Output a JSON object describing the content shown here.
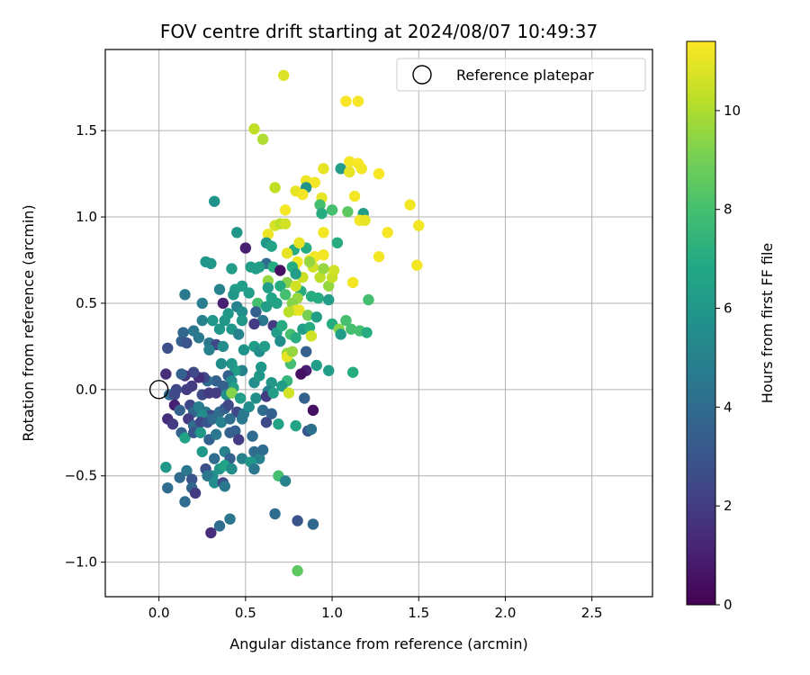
{
  "chart_data": {
    "type": "scatter",
    "title": "FOV centre drift starting at 2024/08/07 10:49:37",
    "xlabel": "Angular distance from reference (arcmin)",
    "ylabel": "Rotation from reference (arcmin)",
    "xlim": [
      -0.31,
      2.85
    ],
    "ylim": [
      -1.2,
      1.97
    ],
    "xticks": [
      0.0,
      0.5,
      1.0,
      1.5,
      2.0,
      2.5
    ],
    "yticks": [
      -1.0,
      -0.5,
      0.0,
      0.5,
      1.0,
      1.5
    ],
    "xtick_labels": [
      "0.0",
      "0.5",
      "1.0",
      "1.5",
      "2.0",
      "2.5"
    ],
    "ytick_labels": [
      "−1.0",
      "−0.5",
      "0.0",
      "0.5",
      "1.0",
      "1.5"
    ],
    "grid": true,
    "legend": {
      "placement": "top-right",
      "entries": [
        "Reference platepar"
      ]
    },
    "reference_point": {
      "x": 0.0,
      "y": 0.0
    },
    "colorbar": {
      "label": "Hours from first FF file",
      "range": [
        0,
        11.4
      ],
      "ticks": [
        0,
        2,
        4,
        6,
        8,
        10
      ],
      "tick_labels": [
        "0",
        "2",
        "4",
        "6",
        "8",
        "10"
      ],
      "colormap": "viridis"
    },
    "points": [
      [
        0.72,
        1.82,
        10.8
      ],
      [
        1.08,
        1.67,
        11.3
      ],
      [
        1.15,
        1.67,
        11.3
      ],
      [
        0.55,
        1.51,
        10.3
      ],
      [
        0.6,
        1.45,
        10.0
      ],
      [
        1.1,
        1.32,
        11.2
      ],
      [
        1.15,
        1.31,
        11.3
      ],
      [
        1.17,
        1.28,
        11.2
      ],
      [
        1.05,
        1.28,
        6.3
      ],
      [
        1.27,
        1.25,
        11.3
      ],
      [
        0.95,
        1.28,
        11.0
      ],
      [
        0.85,
        1.21,
        11.1
      ],
      [
        0.9,
        1.2,
        11.2
      ],
      [
        1.1,
        1.26,
        11.0
      ],
      [
        0.79,
        1.15,
        11.0
      ],
      [
        0.85,
        1.17,
        5.8
      ],
      [
        0.83,
        1.13,
        11.2
      ],
      [
        0.67,
        1.17,
        10.3
      ],
      [
        0.94,
        1.11,
        11.0
      ],
      [
        1.13,
        1.12,
        11.2
      ],
      [
        0.73,
        1.04,
        11.2
      ],
      [
        0.93,
        1.07,
        8.0
      ],
      [
        0.32,
        1.09,
        5.8
      ],
      [
        1.0,
        1.04,
        8.0
      ],
      [
        1.09,
        1.03,
        8.5
      ],
      [
        1.18,
        1.02,
        6.3
      ],
      [
        1.16,
        0.98,
        11.2
      ],
      [
        1.19,
        0.98,
        11.0
      ],
      [
        0.94,
        1.02,
        7.0
      ],
      [
        1.45,
        1.07,
        11.2
      ],
      [
        1.5,
        0.95,
        11.2
      ],
      [
        1.32,
        0.91,
        11.3
      ],
      [
        0.67,
        0.95,
        10.7
      ],
      [
        0.7,
        0.96,
        10.3
      ],
      [
        0.73,
        0.96,
        10.6
      ],
      [
        0.63,
        0.9,
        11.1
      ],
      [
        0.95,
        0.91,
        11.2
      ],
      [
        0.45,
        0.91,
        6.0
      ],
      [
        0.62,
        0.85,
        6.0
      ],
      [
        0.65,
        0.83,
        6.6
      ],
      [
        0.78,
        0.81,
        7.0
      ],
      [
        0.85,
        0.82,
        7.0
      ],
      [
        1.03,
        0.85,
        7.0
      ],
      [
        0.81,
        0.85,
        11.0
      ],
      [
        0.74,
        0.79,
        11.0
      ],
      [
        0.87,
        0.75,
        11.2
      ],
      [
        0.8,
        0.74,
        11.2
      ],
      [
        0.9,
        0.77,
        11.2
      ],
      [
        0.95,
        0.78,
        11.2
      ],
      [
        0.78,
        0.7,
        11.0
      ],
      [
        0.89,
        0.71,
        10.6
      ],
      [
        0.83,
        0.65,
        10.5
      ],
      [
        0.93,
        0.65,
        10.3
      ],
      [
        0.98,
        0.6,
        9.6
      ],
      [
        1.0,
        0.65,
        10.4
      ],
      [
        1.01,
        0.69,
        10.6
      ],
      [
        1.12,
        0.62,
        11.2
      ],
      [
        1.27,
        0.77,
        11.2
      ],
      [
        1.49,
        0.72,
        11.2
      ],
      [
        0.27,
        0.74,
        6.0
      ],
      [
        0.3,
        0.73,
        6.0
      ],
      [
        0.5,
        0.82,
        1.0
      ],
      [
        0.62,
        0.73,
        4.0
      ],
      [
        0.58,
        0.71,
        6.3
      ],
      [
        0.53,
        0.71,
        6.3
      ],
      [
        0.42,
        0.7,
        6.3
      ],
      [
        0.66,
        0.71,
        7.0
      ],
      [
        0.77,
        0.71,
        7.0
      ],
      [
        0.56,
        0.7,
        6.3
      ],
      [
        0.7,
        0.69,
        0.5
      ],
      [
        0.79,
        0.67,
        6.3
      ],
      [
        0.87,
        0.74,
        9.6
      ],
      [
        0.95,
        0.7,
        9.6
      ],
      [
        0.74,
        0.62,
        9.3
      ],
      [
        0.7,
        0.6,
        7.0
      ],
      [
        0.63,
        0.63,
        9.6
      ],
      [
        0.48,
        0.6,
        6.3
      ],
      [
        0.44,
        0.58,
        6.3
      ],
      [
        0.35,
        0.58,
        5.0
      ],
      [
        0.43,
        0.55,
        6.0
      ],
      [
        0.52,
        0.56,
        6.3
      ],
      [
        0.63,
        0.59,
        6.3
      ],
      [
        0.82,
        0.57,
        7.0
      ],
      [
        0.92,
        0.53,
        7.0
      ],
      [
        0.88,
        0.54,
        7.0
      ],
      [
        0.98,
        0.52,
        6.3
      ],
      [
        0.15,
        0.55,
        4.6
      ],
      [
        0.25,
        0.5,
        4.8
      ],
      [
        0.37,
        0.5,
        1.0
      ],
      [
        0.57,
        0.5,
        8.0
      ],
      [
        0.65,
        0.53,
        6.6
      ],
      [
        0.73,
        0.55,
        8.0
      ],
      [
        0.79,
        0.6,
        10.6
      ],
      [
        0.8,
        0.53,
        9.6
      ],
      [
        0.77,
        0.5,
        9.3
      ],
      [
        0.79,
        0.46,
        10.7
      ],
      [
        0.81,
        0.46,
        11.0
      ],
      [
        0.75,
        0.45,
        10.2
      ],
      [
        0.86,
        0.43,
        9.0
      ],
      [
        0.91,
        0.42,
        6.3
      ],
      [
        1.21,
        0.52,
        8.0
      ],
      [
        0.68,
        0.5,
        6.6
      ],
      [
        0.62,
        0.48,
        6.3
      ],
      [
        0.45,
        0.48,
        5.0
      ],
      [
        0.48,
        0.45,
        5.5
      ],
      [
        0.56,
        0.45,
        3.5
      ],
      [
        0.6,
        0.4,
        4.5
      ],
      [
        0.55,
        0.38,
        2.0
      ],
      [
        0.48,
        0.4,
        6.0
      ],
      [
        0.4,
        0.44,
        6.0
      ],
      [
        0.38,
        0.4,
        6.0
      ],
      [
        0.31,
        0.4,
        6.0
      ],
      [
        0.25,
        0.4,
        5.0
      ],
      [
        0.35,
        0.35,
        6.0
      ],
      [
        0.42,
        0.35,
        6.0
      ],
      [
        0.46,
        0.32,
        5.0
      ],
      [
        0.2,
        0.34,
        4.5
      ],
      [
        0.14,
        0.33,
        3.8
      ],
      [
        0.23,
        0.3,
        4.5
      ],
      [
        0.13,
        0.28,
        3.5
      ],
      [
        0.16,
        0.27,
        3.0
      ],
      [
        0.05,
        0.24,
        2.8
      ],
      [
        0.29,
        0.27,
        4.5
      ],
      [
        0.33,
        0.26,
        2.5
      ],
      [
        0.29,
        0.23,
        5.0
      ],
      [
        0.37,
        0.25,
        5.5
      ],
      [
        0.49,
        0.23,
        5.8
      ],
      [
        0.55,
        0.25,
        6.3
      ],
      [
        0.58,
        0.22,
        5.5
      ],
      [
        0.61,
        0.25,
        6.3
      ],
      [
        0.66,
        0.37,
        2.0
      ],
      [
        0.68,
        0.33,
        6.3
      ],
      [
        0.71,
        0.37,
        7.0
      ],
      [
        0.76,
        0.32,
        8.0
      ],
      [
        0.79,
        0.3,
        7.0
      ],
      [
        0.83,
        0.35,
        6.3
      ],
      [
        0.87,
        0.36,
        7.0
      ],
      [
        0.88,
        0.31,
        10.6
      ],
      [
        1.0,
        0.38,
        7.0
      ],
      [
        1.04,
        0.35,
        9.3
      ],
      [
        1.08,
        0.4,
        8.0
      ],
      [
        1.05,
        0.32,
        6.3
      ],
      [
        1.11,
        0.35,
        8.0
      ],
      [
        1.16,
        0.34,
        8.0
      ],
      [
        1.2,
        0.33,
        7.0
      ],
      [
        0.7,
        0.28,
        5.5
      ],
      [
        0.74,
        0.21,
        9.6
      ],
      [
        0.76,
        0.15,
        8.0
      ],
      [
        0.74,
        0.19,
        11.0
      ],
      [
        0.77,
        0.22,
        9.6
      ],
      [
        0.85,
        0.22,
        3.5
      ],
      [
        0.91,
        0.14,
        6.3
      ],
      [
        0.98,
        0.11,
        6.3
      ],
      [
        1.12,
        0.1,
        7.0
      ],
      [
        0.85,
        0.11,
        1.0
      ],
      [
        0.82,
        0.09,
        0.5
      ],
      [
        0.74,
        0.05,
        7.5
      ],
      [
        0.71,
        0.02,
        6.3
      ],
      [
        0.65,
        0.04,
        6.0
      ],
      [
        0.63,
        -0.01,
        5.0
      ],
      [
        0.55,
        0.04,
        5.5
      ],
      [
        0.58,
        0.08,
        6.0
      ],
      [
        0.59,
        0.13,
        6.0
      ],
      [
        0.48,
        0.11,
        5.0
      ],
      [
        0.44,
        0.11,
        6.3
      ],
      [
        0.42,
        0.15,
        6.0
      ],
      [
        0.36,
        0.15,
        5.5
      ],
      [
        0.4,
        0.08,
        3.5
      ],
      [
        0.42,
        0.05,
        5.5
      ],
      [
        0.43,
        0.01,
        6.3
      ],
      [
        0.37,
        0.02,
        3.5
      ],
      [
        0.33,
        0.05,
        3.5
      ],
      [
        0.28,
        0.05,
        4.0
      ],
      [
        0.26,
        0.07,
        2.5
      ],
      [
        0.23,
        0.07,
        1.5
      ],
      [
        0.2,
        0.1,
        2.5
      ],
      [
        0.15,
        0.08,
        1.8
      ],
      [
        0.13,
        0.09,
        3.5
      ],
      [
        0.04,
        0.09,
        1.5
      ],
      [
        0.19,
        0.02,
        2.0
      ],
      [
        0.16,
        0.0,
        2.0
      ],
      [
        0.1,
        0.0,
        2.5
      ],
      [
        0.06,
        -0.03,
        4.0
      ],
      [
        0.09,
        -0.03,
        2.5
      ],
      [
        0.25,
        -0.03,
        2.5
      ],
      [
        0.29,
        -0.02,
        2.0
      ],
      [
        0.33,
        -0.02,
        2.0
      ],
      [
        0.39,
        -0.03,
        5.5
      ],
      [
        0.42,
        -0.02,
        9.3
      ],
      [
        0.47,
        -0.05,
        6.3
      ],
      [
        0.56,
        -0.05,
        5.5
      ],
      [
        0.62,
        -0.04,
        2.0
      ],
      [
        0.66,
        -0.02,
        6.3
      ],
      [
        0.75,
        -0.02,
        10.6
      ],
      [
        0.84,
        -0.05,
        3.5
      ],
      [
        0.09,
        -0.09,
        1.0
      ],
      [
        0.12,
        -0.12,
        3.5
      ],
      [
        0.18,
        -0.09,
        2.5
      ],
      [
        0.2,
        -0.13,
        3.8
      ],
      [
        0.23,
        -0.1,
        4.8
      ],
      [
        0.27,
        -0.13,
        4.5
      ],
      [
        0.3,
        -0.15,
        2.5
      ],
      [
        0.25,
        -0.15,
        5.5
      ],
      [
        0.35,
        -0.13,
        4.0
      ],
      [
        0.38,
        -0.11,
        3.5
      ],
      [
        0.4,
        -0.09,
        2.5
      ],
      [
        0.45,
        -0.13,
        2.5
      ],
      [
        0.49,
        -0.14,
        4.5
      ],
      [
        0.52,
        -0.1,
        5.5
      ],
      [
        0.6,
        -0.12,
        4.0
      ],
      [
        0.65,
        -0.14,
        3.5
      ],
      [
        0.89,
        -0.12,
        0.5
      ],
      [
        0.05,
        -0.17,
        1.5
      ],
      [
        0.08,
        -0.2,
        2.0
      ],
      [
        0.17,
        -0.17,
        2.0
      ],
      [
        0.2,
        -0.21,
        4.0
      ],
      [
        0.24,
        -0.19,
        2.5
      ],
      [
        0.28,
        -0.19,
        3.0
      ],
      [
        0.31,
        -0.17,
        4.0
      ],
      [
        0.36,
        -0.19,
        5.0
      ],
      [
        0.41,
        -0.17,
        4.0
      ],
      [
        0.48,
        -0.17,
        4.5
      ],
      [
        0.62,
        -0.19,
        2.5
      ],
      [
        0.69,
        -0.2,
        6.6
      ],
      [
        0.79,
        -0.21,
        6.6
      ],
      [
        0.86,
        -0.24,
        3.0
      ],
      [
        0.88,
        -0.23,
        4.2
      ],
      [
        0.13,
        -0.25,
        3.5
      ],
      [
        0.15,
        -0.28,
        6.6
      ],
      [
        0.2,
        -0.25,
        3.0
      ],
      [
        0.24,
        -0.25,
        6.0
      ],
      [
        0.29,
        -0.29,
        3.5
      ],
      [
        0.33,
        -0.26,
        4.5
      ],
      [
        0.41,
        -0.25,
        3.5
      ],
      [
        0.44,
        -0.24,
        3.5
      ],
      [
        0.46,
        -0.29,
        2.0
      ],
      [
        0.54,
        -0.27,
        4.0
      ],
      [
        0.55,
        -0.36,
        4.0
      ],
      [
        0.58,
        -0.4,
        5.0
      ],
      [
        0.6,
        -0.35,
        4.0
      ],
      [
        0.25,
        -0.36,
        6.0
      ],
      [
        0.32,
        -0.4,
        4.0
      ],
      [
        0.38,
        -0.36,
        5.0
      ],
      [
        0.41,
        -0.4,
        3.5
      ],
      [
        0.48,
        -0.4,
        5.0
      ],
      [
        0.53,
        -0.42,
        6.0
      ],
      [
        0.55,
        -0.46,
        4.5
      ],
      [
        0.04,
        -0.45,
        6.0
      ],
      [
        0.16,
        -0.47,
        4.5
      ],
      [
        0.27,
        -0.46,
        2.8
      ],
      [
        0.31,
        -0.5,
        5.5
      ],
      [
        0.35,
        -0.46,
        6.0
      ],
      [
        0.38,
        -0.44,
        6.6
      ],
      [
        0.42,
        -0.46,
        5.5
      ],
      [
        0.12,
        -0.51,
        4.0
      ],
      [
        0.19,
        -0.52,
        3.0
      ],
      [
        0.28,
        -0.5,
        4.5
      ],
      [
        0.32,
        -0.54,
        5.5
      ],
      [
        0.37,
        -0.54,
        2.5
      ],
      [
        0.69,
        -0.5,
        8.0
      ],
      [
        0.73,
        -0.53,
        5.0
      ],
      [
        0.05,
        -0.57,
        4.0
      ],
      [
        0.19,
        -0.57,
        3.8
      ],
      [
        0.38,
        -0.56,
        4.5
      ],
      [
        0.15,
        -0.65,
        4.0
      ],
      [
        0.21,
        -0.6,
        2.0
      ],
      [
        0.67,
        -0.72,
        4.0
      ],
      [
        0.8,
        -0.76,
        3.0
      ],
      [
        0.89,
        -0.78,
        3.8
      ],
      [
        0.35,
        -0.79,
        4.0
      ],
      [
        0.41,
        -0.75,
        4.5
      ],
      [
        0.3,
        -0.83,
        1.5
      ],
      [
        0.8,
        -1.05,
        8.5
      ]
    ]
  }
}
